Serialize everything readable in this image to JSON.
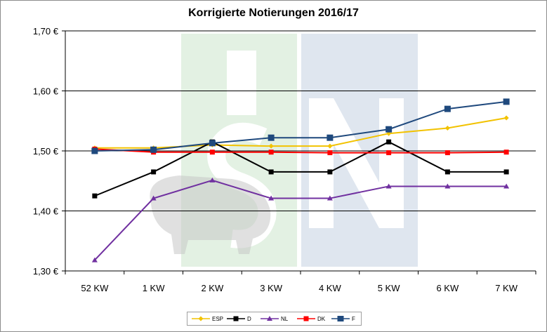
{
  "chart_data": {
    "type": "line",
    "title": "Korrigierte Notierungen 2016/17",
    "categories": [
      "52 KW",
      "1 KW",
      "2 KW",
      "3 KW",
      "4 KW",
      "5 KW",
      "6 KW",
      "7 KW"
    ],
    "y_ticks": [
      "1,30 €",
      "1,40 €",
      "1,50 €",
      "1,60 €",
      "1,70 €"
    ],
    "ylim": [
      1.3,
      1.7
    ],
    "grid": true,
    "legend_position": "bottom",
    "series": [
      {
        "name": "ESP",
        "color": "#f2c200",
        "marker": "diamond",
        "values": [
          1.505,
          1.505,
          1.51,
          1.508,
          1.508,
          1.529,
          1.538,
          1.555
        ]
      },
      {
        "name": "D",
        "color": "#000000",
        "marker": "square-small",
        "values": [
          1.425,
          1.465,
          1.515,
          1.465,
          1.465,
          1.515,
          1.465,
          1.465
        ]
      },
      {
        "name": "NL",
        "color": "#7030a0",
        "marker": "triangle",
        "values": [
          1.318,
          1.421,
          1.451,
          1.421,
          1.421,
          1.441,
          1.441,
          1.441
        ]
      },
      {
        "name": "DK",
        "color": "#ff0000",
        "marker": "square-small",
        "values": [
          1.503,
          1.498,
          1.498,
          1.498,
          1.497,
          1.497,
          1.497,
          1.498
        ]
      },
      {
        "name": "F",
        "color": "#1f497d",
        "marker": "square",
        "values": [
          1.5,
          1.502,
          1.513,
          1.522,
          1.522,
          1.536,
          1.57,
          1.582
        ]
      }
    ]
  }
}
